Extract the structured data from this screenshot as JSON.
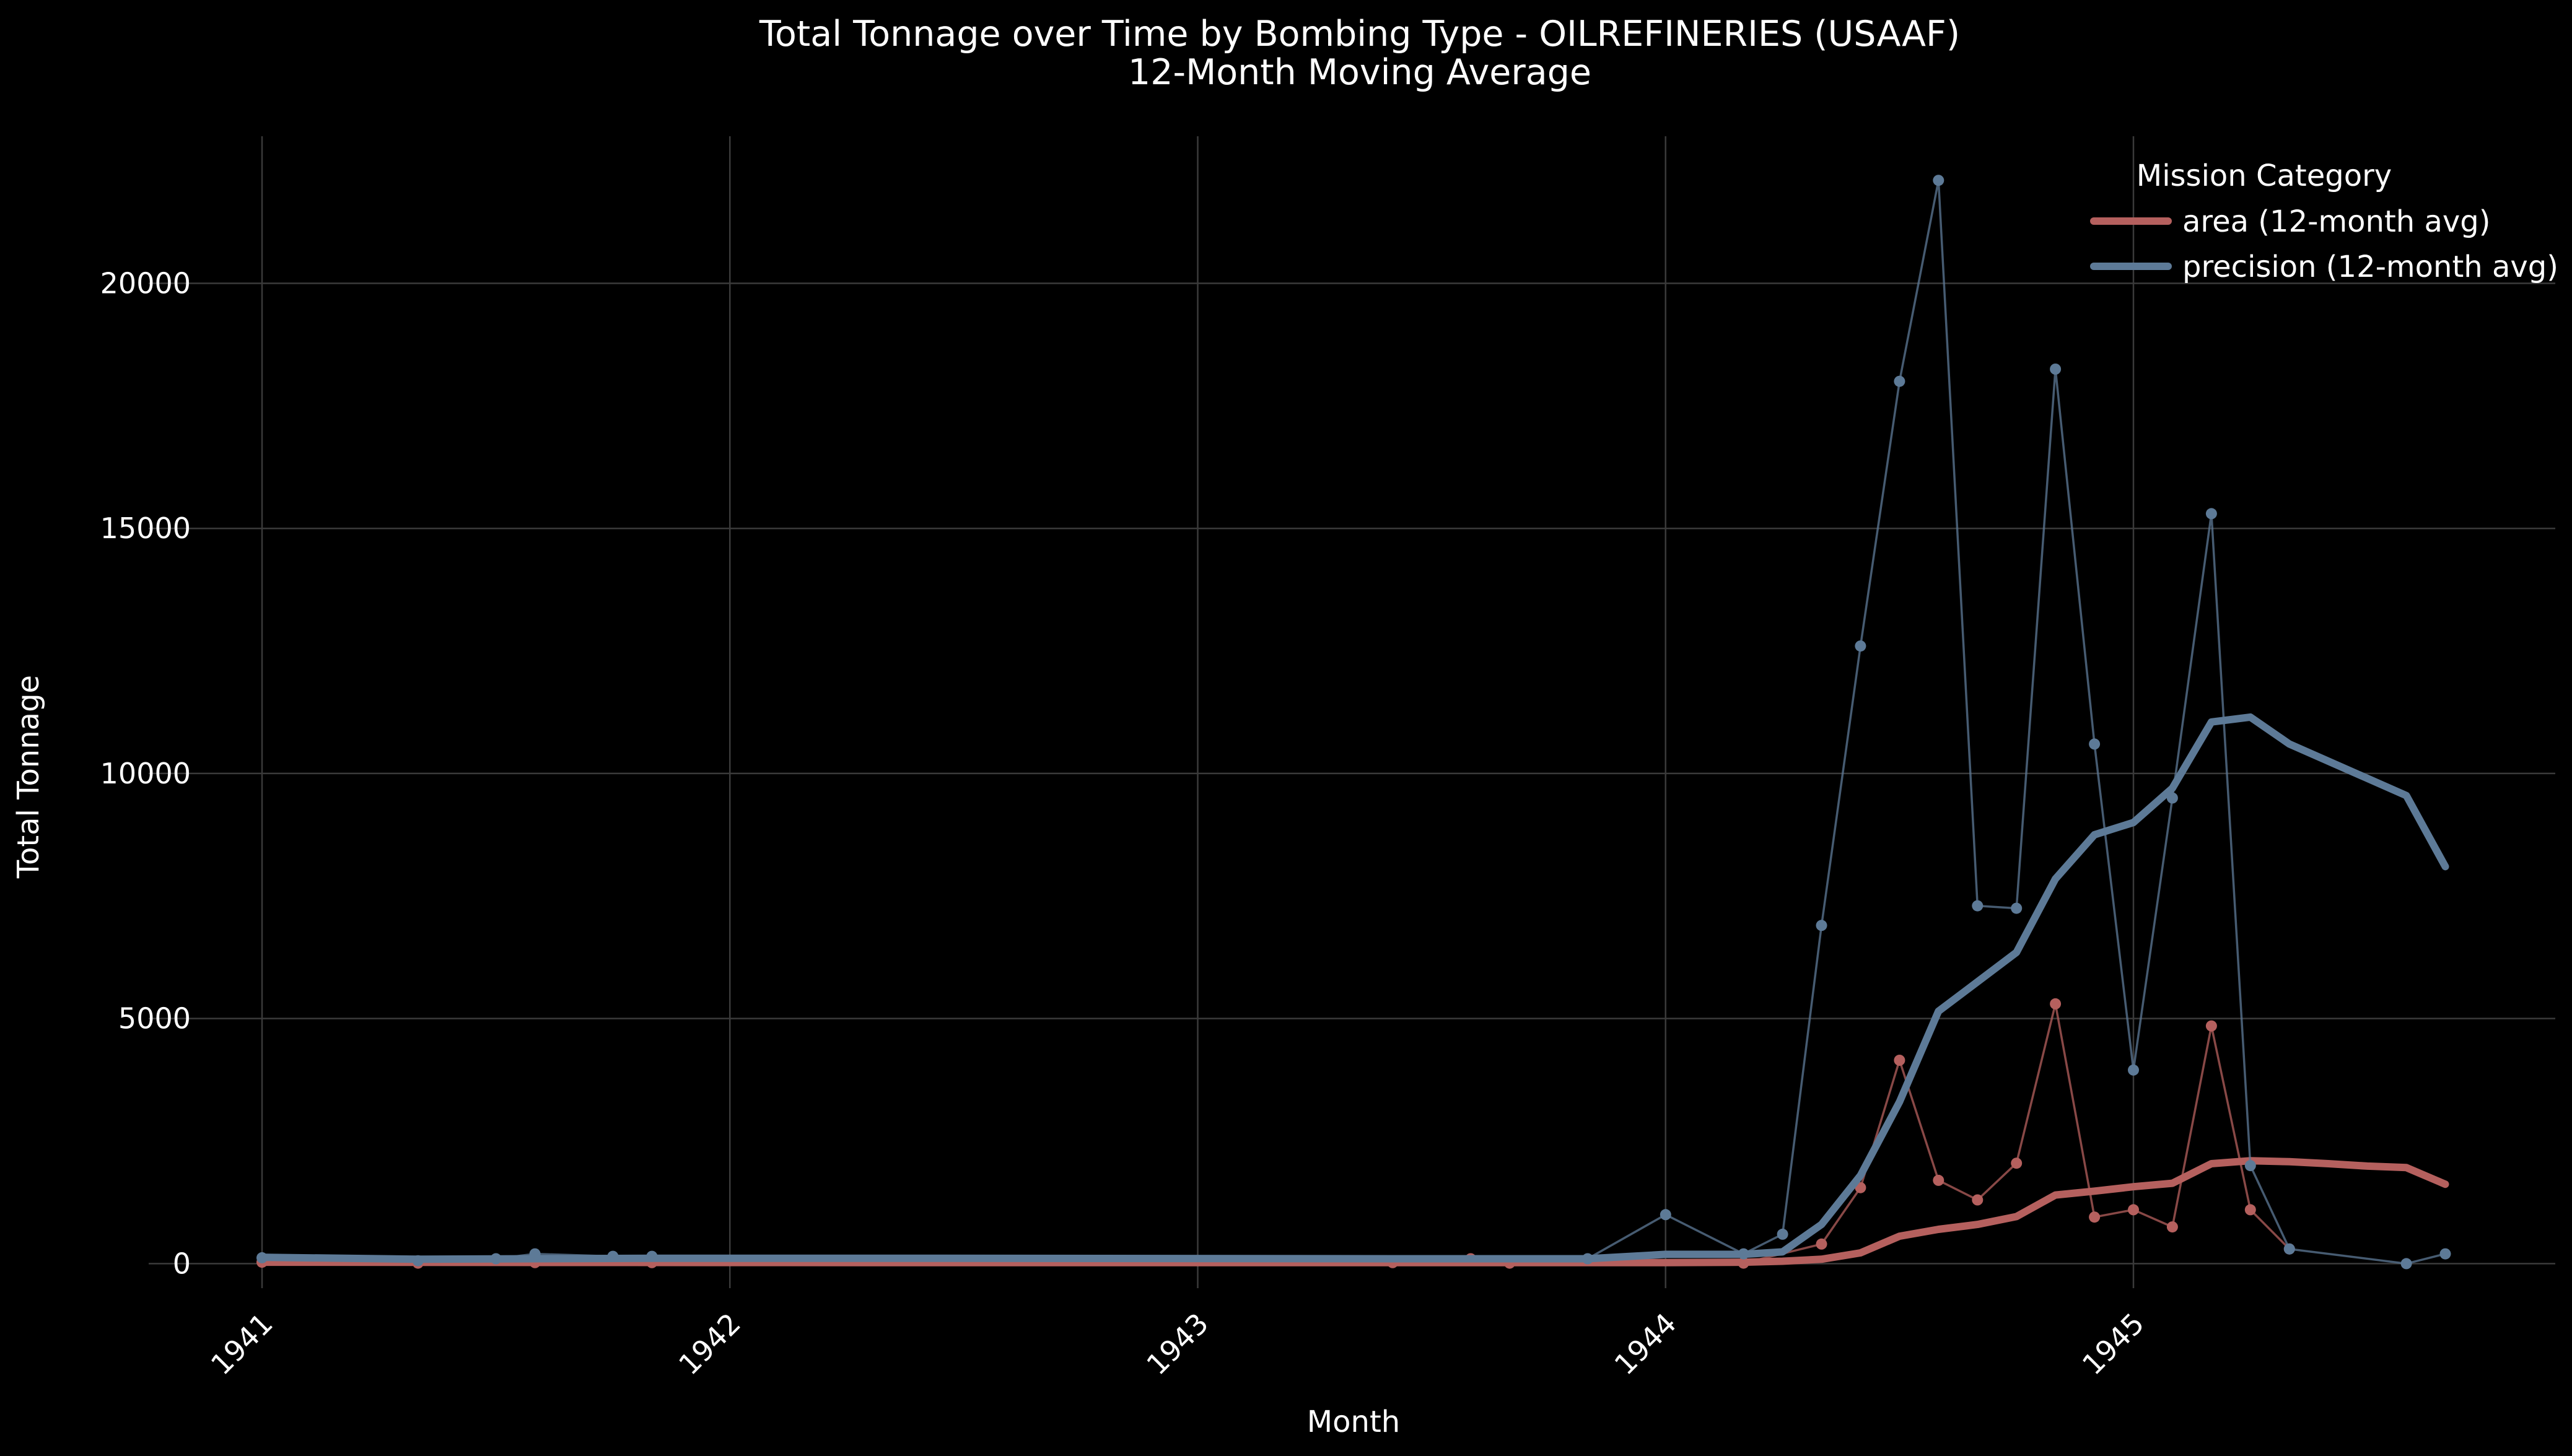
{
  "chart_data": {
    "type": "line",
    "title": "Total Tonnage over Time by Bombing Type - OILREFINERIES (USAAF)",
    "subtitle": "12-Month Moving Average",
    "xlabel": "Month",
    "ylabel": "Total Tonnage",
    "x_ticks": [
      "1941",
      "1942",
      "1943",
      "1944",
      "1945"
    ],
    "y_ticks": [
      0,
      5000,
      10000,
      15000,
      20000
    ],
    "xlim": [
      "1941-01",
      "1945-10"
    ],
    "ylim": [
      -500,
      23000
    ],
    "grid": true,
    "legend": {
      "title": "Mission Category",
      "placement": "top-right"
    },
    "series": [
      {
        "name": "area (12-month avg)",
        "color": "#b5605e",
        "monthly": [
          [
            "1941-01",
            30
          ],
          [
            "1941-05",
            10
          ],
          [
            "1941-08",
            20
          ],
          [
            "1941-11",
            20
          ],
          [
            "1943-06",
            20
          ],
          [
            "1943-08",
            100
          ],
          [
            "1943-09",
            10
          ],
          [
            "1944-03",
            10
          ],
          [
            "1944-05",
            400
          ],
          [
            "1944-06",
            1550
          ],
          [
            "1944-07",
            4150
          ],
          [
            "1944-08",
            1700
          ],
          [
            "1944-09",
            1300
          ],
          [
            "1944-10",
            2050
          ],
          [
            "1944-11",
            5300
          ],
          [
            "1944-12",
            950
          ],
          [
            "1945-01",
            1100
          ],
          [
            "1945-02",
            750
          ],
          [
            "1945-03",
            4850
          ],
          [
            "1945-04",
            1100
          ],
          [
            "1945-05",
            300
          ]
        ],
        "moving_avg": [
          [
            "1941-01",
            30
          ],
          [
            "1941-06",
            25
          ],
          [
            "1942-06",
            20
          ],
          [
            "1943-06",
            20
          ],
          [
            "1944-01",
            20
          ],
          [
            "1944-03",
            30
          ],
          [
            "1944-04",
            50
          ],
          [
            "1944-05",
            90
          ],
          [
            "1944-06",
            220
          ],
          [
            "1944-07",
            560
          ],
          [
            "1944-08",
            700
          ],
          [
            "1944-09",
            800
          ],
          [
            "1944-10",
            960
          ],
          [
            "1944-11",
            1400
          ],
          [
            "1944-12",
            1480
          ],
          [
            "1945-01",
            1570
          ],
          [
            "1945-02",
            1640
          ],
          [
            "1945-03",
            2040
          ],
          [
            "1945-04",
            2100
          ],
          [
            "1945-05",
            2080
          ],
          [
            "1945-06",
            2040
          ],
          [
            "1945-07",
            1990
          ],
          [
            "1945-08",
            1960
          ],
          [
            "1945-09",
            1620
          ]
        ]
      },
      {
        "name": "precision (12-month avg)",
        "color": "#5d7a97",
        "monthly": [
          [
            "1941-01",
            120
          ],
          [
            "1941-05",
            60
          ],
          [
            "1941-07",
            100
          ],
          [
            "1941-08",
            200
          ],
          [
            "1941-10",
            150
          ],
          [
            "1941-11",
            150
          ],
          [
            "1943-11",
            100
          ],
          [
            "1944-01",
            1000
          ],
          [
            "1944-03",
            200
          ],
          [
            "1944-04",
            600
          ],
          [
            "1944-05",
            6900
          ],
          [
            "1944-06",
            12600
          ],
          [
            "1944-07",
            18000
          ],
          [
            "1944-08",
            22100
          ],
          [
            "1944-09",
            7300
          ],
          [
            "1944-10",
            7250
          ],
          [
            "1944-11",
            18250
          ],
          [
            "1944-12",
            10600
          ],
          [
            "1945-01",
            3950
          ],
          [
            "1945-02",
            9500
          ],
          [
            "1945-03",
            15300
          ],
          [
            "1945-04",
            2000
          ],
          [
            "1945-05",
            300
          ],
          [
            "1945-08",
            0
          ],
          [
            "1945-09",
            200
          ]
        ],
        "moving_avg": [
          [
            "1941-01",
            130
          ],
          [
            "1941-05",
            90
          ],
          [
            "1941-11",
            110
          ],
          [
            "1942-06",
            110
          ],
          [
            "1943-06",
            100
          ],
          [
            "1943-11",
            100
          ],
          [
            "1944-01",
            190
          ],
          [
            "1944-03",
            190
          ],
          [
            "1944-04",
            240
          ],
          [
            "1944-05",
            800
          ],
          [
            "1944-06",
            1800
          ],
          [
            "1944-07",
            3300
          ],
          [
            "1944-08",
            5150
          ],
          [
            "1944-09",
            5750
          ],
          [
            "1944-10",
            6350
          ],
          [
            "1944-11",
            7850
          ],
          [
            "1944-12",
            8750
          ],
          [
            "1945-01",
            9000
          ],
          [
            "1945-02",
            9700
          ],
          [
            "1945-03",
            11050
          ],
          [
            "1945-04",
            11150
          ],
          [
            "1945-05",
            10600
          ],
          [
            "1945-08",
            9550
          ],
          [
            "1945-09",
            8100
          ]
        ]
      }
    ]
  }
}
